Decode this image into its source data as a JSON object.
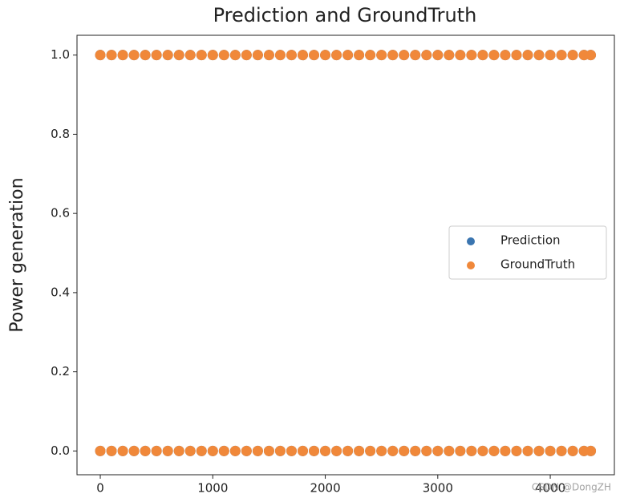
{
  "chart_data": {
    "type": "scatter",
    "title": "Prediction and GroundTruth",
    "ylabel": "Power generation",
    "xlim": [
      -207,
      4570
    ],
    "ylim": [
      -0.06,
      1.05
    ],
    "xticks": [
      0,
      1000,
      2000,
      3000,
      4000
    ],
    "yticks": [
      {
        "value": 0,
        "label": "0.0"
      },
      {
        "value": 0.2,
        "label": "0.2"
      },
      {
        "value": 0.4,
        "label": "0.4"
      },
      {
        "value": 0.6,
        "label": "0.6"
      },
      {
        "value": 0.8,
        "label": "0.8"
      },
      {
        "value": 1,
        "label": "1.0"
      }
    ],
    "legend": "center right",
    "watermark": "CSDN @DongZH",
    "series": [
      {
        "name": "Prediction",
        "color": "#3a75b0",
        "x": [
          0,
          100,
          200,
          300,
          400,
          500,
          600,
          700,
          800,
          900,
          1000,
          1100,
          1200,
          1300,
          1400,
          1500,
          1600,
          1700,
          1800,
          1900,
          2000,
          2100,
          2200,
          2300,
          2400,
          2500,
          2600,
          2700,
          2800,
          2900,
          3000,
          3100,
          3200,
          3300,
          3400,
          3500,
          3600,
          3700,
          3800,
          3900,
          4000,
          4100,
          4200,
          4300,
          4360,
          0,
          100,
          200,
          300,
          400,
          500,
          600,
          700,
          800,
          900,
          1000,
          1100,
          1200,
          1300,
          1400,
          1500,
          1600,
          1700,
          1800,
          1900,
          2000,
          2100,
          2200,
          2300,
          2400,
          2500,
          2600,
          2700,
          2800,
          2900,
          3000,
          3100,
          3200,
          3300,
          3400,
          3500,
          3600,
          3700,
          3800,
          3900,
          4000,
          4100,
          4200,
          4300,
          4360
        ],
        "values": [
          0,
          0,
          0,
          0,
          0,
          0,
          0,
          0,
          0,
          0,
          0,
          0,
          0,
          0,
          0,
          0,
          0,
          0,
          0,
          0,
          0,
          0,
          0,
          0,
          0,
          0,
          0,
          0,
          0,
          0,
          0,
          0,
          0,
          0,
          0,
          0,
          0,
          0,
          0,
          0,
          0,
          0,
          0,
          0,
          0,
          1,
          1,
          1,
          1,
          1,
          1,
          1,
          1,
          1,
          1,
          1,
          1,
          1,
          1,
          1,
          1,
          1,
          1,
          1,
          1,
          1,
          1,
          1,
          1,
          1,
          1,
          1,
          1,
          1,
          1,
          1,
          1,
          1,
          1,
          1,
          1,
          1,
          1,
          1,
          1,
          1,
          1,
          1,
          1,
          1
        ]
      },
      {
        "name": "GroundTruth",
        "color": "#f0883a",
        "x": [
          0,
          100,
          200,
          300,
          400,
          500,
          600,
          700,
          800,
          900,
          1000,
          1100,
          1200,
          1300,
          1400,
          1500,
          1600,
          1700,
          1800,
          1900,
          2000,
          2100,
          2200,
          2300,
          2400,
          2500,
          2600,
          2700,
          2800,
          2900,
          3000,
          3100,
          3200,
          3300,
          3400,
          3500,
          3600,
          3700,
          3800,
          3900,
          4000,
          4100,
          4200,
          4300,
          4360,
          0,
          100,
          200,
          300,
          400,
          500,
          600,
          700,
          800,
          900,
          1000,
          1100,
          1200,
          1300,
          1400,
          1500,
          1600,
          1700,
          1800,
          1900,
          2000,
          2100,
          2200,
          2300,
          2400,
          2500,
          2600,
          2700,
          2800,
          2900,
          3000,
          3100,
          3200,
          3300,
          3400,
          3500,
          3600,
          3700,
          3800,
          3900,
          4000,
          4100,
          4200,
          4300,
          4360
        ],
        "values": [
          0,
          0,
          0,
          0,
          0,
          0,
          0,
          0,
          0,
          0,
          0,
          0,
          0,
          0,
          0,
          0,
          0,
          0,
          0,
          0,
          0,
          0,
          0,
          0,
          0,
          0,
          0,
          0,
          0,
          0,
          0,
          0,
          0,
          0,
          0,
          0,
          0,
          0,
          0,
          0,
          0,
          0,
          0,
          0,
          0,
          1,
          1,
          1,
          1,
          1,
          1,
          1,
          1,
          1,
          1,
          1,
          1,
          1,
          1,
          1,
          1,
          1,
          1,
          1,
          1,
          1,
          1,
          1,
          1,
          1,
          1,
          1,
          1,
          1,
          1,
          1,
          1,
          1,
          1,
          1,
          1,
          1,
          1,
          1,
          1,
          1,
          1,
          1,
          1,
          1
        ]
      }
    ]
  }
}
